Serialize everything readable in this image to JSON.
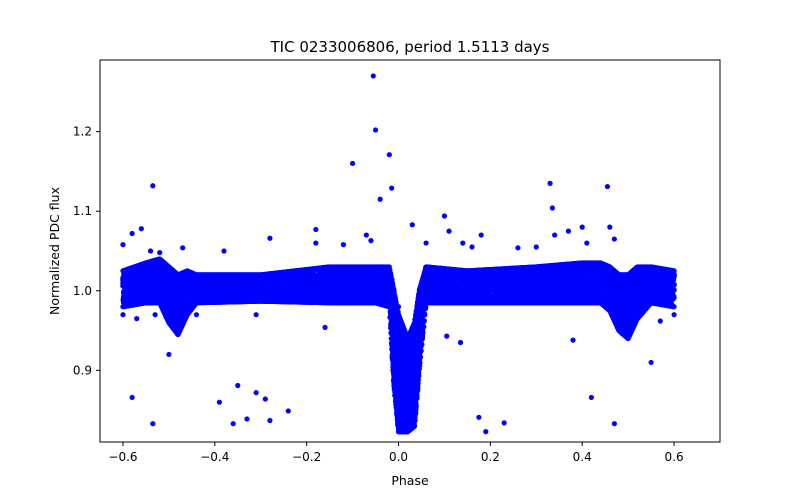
{
  "chart_data": {
    "type": "scatter",
    "title": "TIC 0233006806, period 1.5113 days",
    "xlabel": "Phase",
    "ylabel": "Normalized PDC flux",
    "xlim": [
      -0.65,
      0.7
    ],
    "ylim": [
      0.81,
      1.29
    ],
    "xticks": [
      -0.6,
      -0.4,
      -0.2,
      0.0,
      0.2,
      0.4,
      0.6
    ],
    "xtick_labels": [
      "−0.6",
      "−0.4",
      "−0.2",
      "0.0",
      "0.2",
      "0.4",
      "0.6"
    ],
    "yticks": [
      0.9,
      1.0,
      1.1,
      1.2
    ],
    "ytick_labels": [
      "0.9",
      "1.0",
      "1.1",
      "1.2"
    ],
    "grid": false,
    "marker_color": "#0000ff",
    "baseline_flux": 1.0,
    "phase_range": [
      -0.6,
      0.6
    ],
    "dense_band": [
      {
        "x": -0.6,
        "lo": 0.98,
        "hi": 1.025
      },
      {
        "x": -0.55,
        "lo": 0.985,
        "hi": 1.035
      },
      {
        "x": -0.52,
        "lo": 0.985,
        "hi": 1.04
      },
      {
        "x": -0.5,
        "lo": 0.96,
        "hi": 1.03
      },
      {
        "x": -0.48,
        "lo": 0.945,
        "hi": 1.02
      },
      {
        "x": -0.46,
        "lo": 0.97,
        "hi": 1.025
      },
      {
        "x": -0.44,
        "lo": 0.985,
        "hi": 1.02
      },
      {
        "x": -0.3,
        "lo": 0.987,
        "hi": 1.02
      },
      {
        "x": -0.15,
        "lo": 0.985,
        "hi": 1.03
      },
      {
        "x": -0.05,
        "lo": 0.985,
        "hi": 1.03
      },
      {
        "x": -0.02,
        "lo": 0.98,
        "hi": 1.03
      },
      {
        "x": -0.01,
        "lo": 0.88,
        "hi": 1.0
      },
      {
        "x": 0.0,
        "lo": 0.823,
        "hi": 0.97
      },
      {
        "x": 0.02,
        "lo": 0.823,
        "hi": 0.94
      },
      {
        "x": 0.035,
        "lo": 0.83,
        "hi": 0.96
      },
      {
        "x": 0.045,
        "lo": 0.9,
        "hi": 1.0
      },
      {
        "x": 0.06,
        "lo": 0.985,
        "hi": 1.03
      },
      {
        "x": 0.15,
        "lo": 0.985,
        "hi": 1.025
      },
      {
        "x": 0.3,
        "lo": 0.985,
        "hi": 1.03
      },
      {
        "x": 0.4,
        "lo": 0.985,
        "hi": 1.035
      },
      {
        "x": 0.44,
        "lo": 0.985,
        "hi": 1.035
      },
      {
        "x": 0.46,
        "lo": 0.975,
        "hi": 1.03
      },
      {
        "x": 0.48,
        "lo": 0.95,
        "hi": 1.02
      },
      {
        "x": 0.5,
        "lo": 0.94,
        "hi": 1.02
      },
      {
        "x": 0.52,
        "lo": 0.965,
        "hi": 1.03
      },
      {
        "x": 0.55,
        "lo": 0.985,
        "hi": 1.03
      },
      {
        "x": 0.6,
        "lo": 0.98,
        "hi": 1.025
      }
    ],
    "outliers": [
      {
        "x": -0.055,
        "y": 1.27
      },
      {
        "x": -0.05,
        "y": 1.202
      },
      {
        "x": -0.02,
        "y": 1.171
      },
      {
        "x": -0.1,
        "y": 1.16
      },
      {
        "x": -0.015,
        "y": 1.129
      },
      {
        "x": -0.04,
        "y": 1.115
      },
      {
        "x": -0.535,
        "y": 1.132
      },
      {
        "x": -0.56,
        "y": 1.078
      },
      {
        "x": -0.58,
        "y": 1.072
      },
      {
        "x": -0.6,
        "y": 1.058
      },
      {
        "x": -0.54,
        "y": 1.05
      },
      {
        "x": -0.52,
        "y": 1.048
      },
      {
        "x": -0.47,
        "y": 1.054
      },
      {
        "x": -0.38,
        "y": 1.05
      },
      {
        "x": -0.28,
        "y": 1.066
      },
      {
        "x": -0.18,
        "y": 1.077
      },
      {
        "x": -0.18,
        "y": 1.06
      },
      {
        "x": -0.12,
        "y": 1.058
      },
      {
        "x": -0.07,
        "y": 1.07
      },
      {
        "x": -0.06,
        "y": 1.063
      },
      {
        "x": 0.03,
        "y": 1.083
      },
      {
        "x": 0.06,
        "y": 1.06
      },
      {
        "x": 0.1,
        "y": 1.094
      },
      {
        "x": 0.11,
        "y": 1.075
      },
      {
        "x": 0.14,
        "y": 1.06
      },
      {
        "x": 0.16,
        "y": 1.055
      },
      {
        "x": 0.18,
        "y": 1.07
      },
      {
        "x": 0.26,
        "y": 1.054
      },
      {
        "x": 0.3,
        "y": 1.055
      },
      {
        "x": 0.33,
        "y": 1.135
      },
      {
        "x": 0.335,
        "y": 1.104
      },
      {
        "x": 0.34,
        "y": 1.07
      },
      {
        "x": 0.37,
        "y": 1.075
      },
      {
        "x": 0.4,
        "y": 1.08
      },
      {
        "x": 0.41,
        "y": 1.06
      },
      {
        "x": 0.455,
        "y": 1.131
      },
      {
        "x": 0.46,
        "y": 1.08
      },
      {
        "x": 0.47,
        "y": 1.065
      },
      {
        "x": -0.58,
        "y": 0.866
      },
      {
        "x": -0.535,
        "y": 0.833
      },
      {
        "x": -0.5,
        "y": 0.92
      },
      {
        "x": -0.39,
        "y": 0.86
      },
      {
        "x": -0.36,
        "y": 0.833
      },
      {
        "x": -0.35,
        "y": 0.881
      },
      {
        "x": -0.33,
        "y": 0.839
      },
      {
        "x": -0.31,
        "y": 0.872
      },
      {
        "x": -0.29,
        "y": 0.864
      },
      {
        "x": -0.28,
        "y": 0.837
      },
      {
        "x": -0.24,
        "y": 0.849
      },
      {
        "x": -0.16,
        "y": 0.954
      },
      {
        "x": 0.105,
        "y": 0.943
      },
      {
        "x": 0.135,
        "y": 0.935
      },
      {
        "x": 0.175,
        "y": 0.841
      },
      {
        "x": 0.19,
        "y": 0.823
      },
      {
        "x": 0.23,
        "y": 0.834
      },
      {
        "x": 0.38,
        "y": 0.938
      },
      {
        "x": 0.42,
        "y": 0.866
      },
      {
        "x": 0.47,
        "y": 0.833
      },
      {
        "x": 0.55,
        "y": 0.91
      },
      {
        "x": -0.6,
        "y": 0.97
      },
      {
        "x": -0.57,
        "y": 0.965
      },
      {
        "x": -0.53,
        "y": 0.97
      },
      {
        "x": -0.44,
        "y": 0.97
      },
      {
        "x": -0.31,
        "y": 0.97
      },
      {
        "x": 0.0,
        "y": 0.98
      },
      {
        "x": 0.57,
        "y": 0.962
      },
      {
        "x": 0.6,
        "y": 0.97
      }
    ]
  }
}
